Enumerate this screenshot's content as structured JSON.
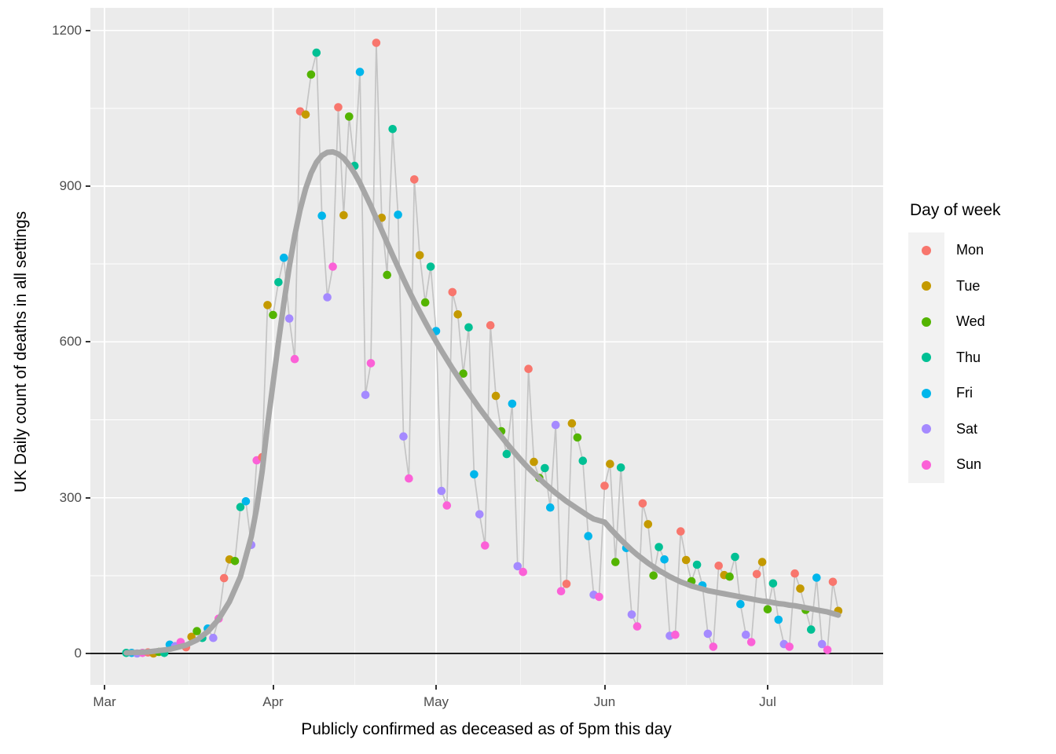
{
  "chart_data": {
    "type": "scatter",
    "title": "",
    "xlabel": "Publicly confirmed as deceased as of 5pm this day",
    "ylabel": "UK Daily count of deaths in all settings",
    "x_axis": {
      "tick_labels": [
        "Mar",
        "Apr",
        "May",
        "Jun",
        "Jul"
      ],
      "tick_days": [
        0,
        31,
        61,
        92,
        122
      ],
      "minor_grid_days": [
        15.5,
        46,
        76.5,
        107,
        137.5
      ],
      "day0": "Mar 1",
      "day0_weekday": "Sun"
    },
    "y_axis": {
      "tick_labels": [
        "0",
        "300",
        "600",
        "900",
        "1200"
      ],
      "ticks": [
        0,
        300,
        600,
        900,
        1200
      ],
      "minor_grid": [
        150,
        450,
        750,
        1050
      ],
      "range_shown": [
        -60,
        1243
      ]
    },
    "legend": {
      "title": "Day of week",
      "position": "right",
      "entries": [
        {
          "label": "Mon",
          "color": "#F8766D"
        },
        {
          "label": "Tue",
          "color": "#C49A00"
        },
        {
          "label": "Wed",
          "color": "#53B400"
        },
        {
          "label": "Thu",
          "color": "#00C094"
        },
        {
          "label": "Fri",
          "color": "#00B6EB"
        },
        {
          "label": "Sat",
          "color": "#A58AFF"
        },
        {
          "label": "Sun",
          "color": "#FB61D7"
        }
      ]
    },
    "weekday_colors": {
      "Sun": "#FB61D7",
      "Mon": "#F8766D",
      "Tue": "#C49A00",
      "Wed": "#53B400",
      "Thu": "#00C094",
      "Fri": "#00B6EB",
      "Sat": "#A58AFF"
    },
    "points_format": "[day_index_from_Mar1, deaths]; weekday = day_index mod 7 with day0 = Sun",
    "points": [
      [
        4,
        1
      ],
      [
        5,
        1
      ],
      [
        6,
        0
      ],
      [
        7,
        1
      ],
      [
        8,
        2
      ],
      [
        9,
        0
      ],
      [
        10,
        3
      ],
      [
        11,
        1
      ],
      [
        12,
        17
      ],
      [
        13,
        14
      ],
      [
        14,
        22
      ],
      [
        15,
        12
      ],
      [
        16,
        32
      ],
      [
        17,
        43
      ],
      [
        18,
        30
      ],
      [
        19,
        48
      ],
      [
        20,
        30
      ],
      [
        21,
        67
      ],
      [
        22,
        145
      ],
      [
        23,
        181
      ],
      [
        24,
        178
      ],
      [
        25,
        282
      ],
      [
        26,
        293
      ],
      [
        27,
        209
      ],
      [
        28,
        372
      ],
      [
        29,
        378
      ],
      [
        30,
        671
      ],
      [
        31,
        652
      ],
      [
        32,
        715
      ],
      [
        33,
        762
      ],
      [
        34,
        645
      ],
      [
        35,
        567
      ],
      [
        36,
        1044
      ],
      [
        37,
        1038
      ],
      [
        38,
        1115
      ],
      [
        39,
        1157
      ],
      [
        40,
        843
      ],
      [
        41,
        686
      ],
      [
        42,
        745
      ],
      [
        43,
        1052
      ],
      [
        44,
        844
      ],
      [
        45,
        1034
      ],
      [
        46,
        939
      ],
      [
        47,
        1120
      ],
      [
        48,
        498
      ],
      [
        49,
        559
      ],
      [
        50,
        1176
      ],
      [
        51,
        839
      ],
      [
        52,
        729
      ],
      [
        53,
        1010
      ],
      [
        54,
        845
      ],
      [
        55,
        418
      ],
      [
        56,
        337
      ],
      [
        57,
        913
      ],
      [
        58,
        767
      ],
      [
        59,
        676
      ],
      [
        60,
        745
      ],
      [
        61,
        621
      ],
      [
        62,
        313
      ],
      [
        63,
        285
      ],
      [
        64,
        696
      ],
      [
        65,
        653
      ],
      [
        66,
        539
      ],
      [
        67,
        628
      ],
      [
        68,
        345
      ],
      [
        69,
        268
      ],
      [
        70,
        208
      ],
      [
        71,
        632
      ],
      [
        72,
        496
      ],
      [
        73,
        428
      ],
      [
        74,
        384
      ],
      [
        75,
        481
      ],
      [
        76,
        168
      ],
      [
        77,
        157
      ],
      [
        78,
        548
      ],
      [
        79,
        369
      ],
      [
        80,
        338
      ],
      [
        81,
        357
      ],
      [
        82,
        281
      ],
      [
        83,
        440
      ],
      [
        84,
        120
      ],
      [
        85,
        134
      ],
      [
        86,
        443
      ],
      [
        87,
        416
      ],
      [
        88,
        371
      ],
      [
        89,
        226
      ],
      [
        90,
        113
      ],
      [
        91,
        109
      ],
      [
        92,
        323
      ],
      [
        93,
        365
      ],
      [
        94,
        176
      ],
      [
        95,
        358
      ],
      [
        96,
        203
      ],
      [
        97,
        75
      ],
      [
        98,
        52
      ],
      [
        99,
        289
      ],
      [
        100,
        249
      ],
      [
        101,
        150
      ],
      [
        102,
        205
      ],
      [
        103,
        181
      ],
      [
        104,
        34
      ],
      [
        105,
        36
      ],
      [
        106,
        235
      ],
      [
        107,
        180
      ],
      [
        108,
        139
      ],
      [
        109,
        171
      ],
      [
        110,
        131
      ],
      [
        111,
        38
      ],
      [
        112,
        13
      ],
      [
        113,
        169
      ],
      [
        114,
        151
      ],
      [
        115,
        148
      ],
      [
        116,
        186
      ],
      [
        117,
        95
      ],
      [
        118,
        36
      ],
      [
        119,
        22
      ],
      [
        120,
        153
      ],
      [
        121,
        176
      ],
      [
        122,
        85
      ],
      [
        123,
        135
      ],
      [
        124,
        65
      ],
      [
        125,
        18
      ],
      [
        126,
        13
      ],
      [
        127,
        154
      ],
      [
        128,
        125
      ],
      [
        129,
        84
      ],
      [
        130,
        46
      ],
      [
        131,
        146
      ],
      [
        132,
        18
      ],
      [
        133,
        7
      ],
      [
        134,
        138
      ],
      [
        135,
        82
      ]
    ],
    "has_connecting_line": true,
    "smooth_line": [
      [
        4,
        1
      ],
      [
        8,
        3
      ],
      [
        12,
        8
      ],
      [
        15,
        16
      ],
      [
        17,
        26
      ],
      [
        19,
        42
      ],
      [
        21,
        66
      ],
      [
        23,
        100
      ],
      [
        25,
        148
      ],
      [
        27,
        225
      ],
      [
        28,
        280
      ],
      [
        29,
        350
      ],
      [
        30,
        440
      ],
      [
        31,
        520
      ],
      [
        32,
        600
      ],
      [
        33,
        675
      ],
      [
        34,
        745
      ],
      [
        35,
        805
      ],
      [
        36,
        855
      ],
      [
        37,
        895
      ],
      [
        38,
        925
      ],
      [
        39,
        946
      ],
      [
        40,
        959
      ],
      [
        41,
        965
      ],
      [
        42,
        966
      ],
      [
        43,
        962
      ],
      [
        44,
        954
      ],
      [
        45,
        941
      ],
      [
        46,
        925
      ],
      [
        47,
        906
      ],
      [
        48,
        884
      ],
      [
        49,
        862
      ],
      [
        50,
        838
      ],
      [
        51,
        815
      ],
      [
        52,
        791
      ],
      [
        53,
        767
      ],
      [
        54,
        744
      ],
      [
        55,
        721
      ],
      [
        56,
        699
      ],
      [
        57,
        678
      ],
      [
        58,
        658
      ],
      [
        59,
        638
      ],
      [
        60,
        619
      ],
      [
        61,
        601
      ],
      [
        62,
        583
      ],
      [
        63,
        566
      ],
      [
        64,
        549
      ],
      [
        65,
        533
      ],
      [
        66,
        517
      ],
      [
        67,
        502
      ],
      [
        68,
        487
      ],
      [
        69,
        472
      ],
      [
        70,
        458
      ],
      [
        71,
        444
      ],
      [
        72,
        431
      ],
      [
        73,
        418
      ],
      [
        74,
        405
      ],
      [
        75,
        392
      ],
      [
        76,
        380
      ],
      [
        77,
        368
      ],
      [
        78,
        357
      ],
      [
        79,
        347
      ],
      [
        80,
        337
      ],
      [
        81,
        327
      ],
      [
        82,
        318
      ],
      [
        83,
        309
      ],
      [
        84,
        301
      ],
      [
        85,
        293
      ],
      [
        86,
        286
      ],
      [
        87,
        279
      ],
      [
        88,
        272
      ],
      [
        89,
        265
      ],
      [
        90,
        259
      ],
      [
        91,
        256
      ],
      [
        92,
        253
      ],
      [
        93,
        241
      ],
      [
        94,
        230
      ],
      [
        95,
        219
      ],
      [
        96,
        209
      ],
      [
        97,
        199
      ],
      [
        98,
        190
      ],
      [
        99,
        182
      ],
      [
        100,
        174
      ],
      [
        101,
        167
      ],
      [
        102,
        160
      ],
      [
        103,
        154
      ],
      [
        104,
        148
      ],
      [
        105,
        143
      ],
      [
        106,
        138
      ],
      [
        107,
        134
      ],
      [
        108,
        130
      ],
      [
        109,
        127
      ],
      [
        110,
        124
      ],
      [
        111,
        121
      ],
      [
        112,
        119
      ],
      [
        113,
        117
      ],
      [
        114,
        115
      ],
      [
        115,
        113
      ],
      [
        116,
        111
      ],
      [
        117,
        109
      ],
      [
        118,
        107
      ],
      [
        119,
        105
      ],
      [
        120,
        103
      ],
      [
        121,
        101
      ],
      [
        122,
        100
      ],
      [
        123,
        98
      ],
      [
        124,
        96
      ],
      [
        125,
        95
      ],
      [
        126,
        93
      ],
      [
        127,
        92
      ],
      [
        128,
        90
      ],
      [
        129,
        88
      ],
      [
        130,
        86
      ],
      [
        131,
        84
      ],
      [
        132,
        82
      ],
      [
        133,
        80
      ],
      [
        134,
        77
      ],
      [
        135,
        74
      ]
    ],
    "zero_baseline": true
  },
  "styles": {
    "panel_bg": "#EBEBEB",
    "grid_color": "#FFFFFF",
    "tick_text_color": "#4D4D4D",
    "axis_title_color": "#000000",
    "connecting_line_color": "#C4C4C4",
    "smooth_line_color": "#A6A6A6",
    "baseline_color": "#000000",
    "legend_key_bg": "#F2F2F2",
    "tick_mark_color": "#333333"
  }
}
